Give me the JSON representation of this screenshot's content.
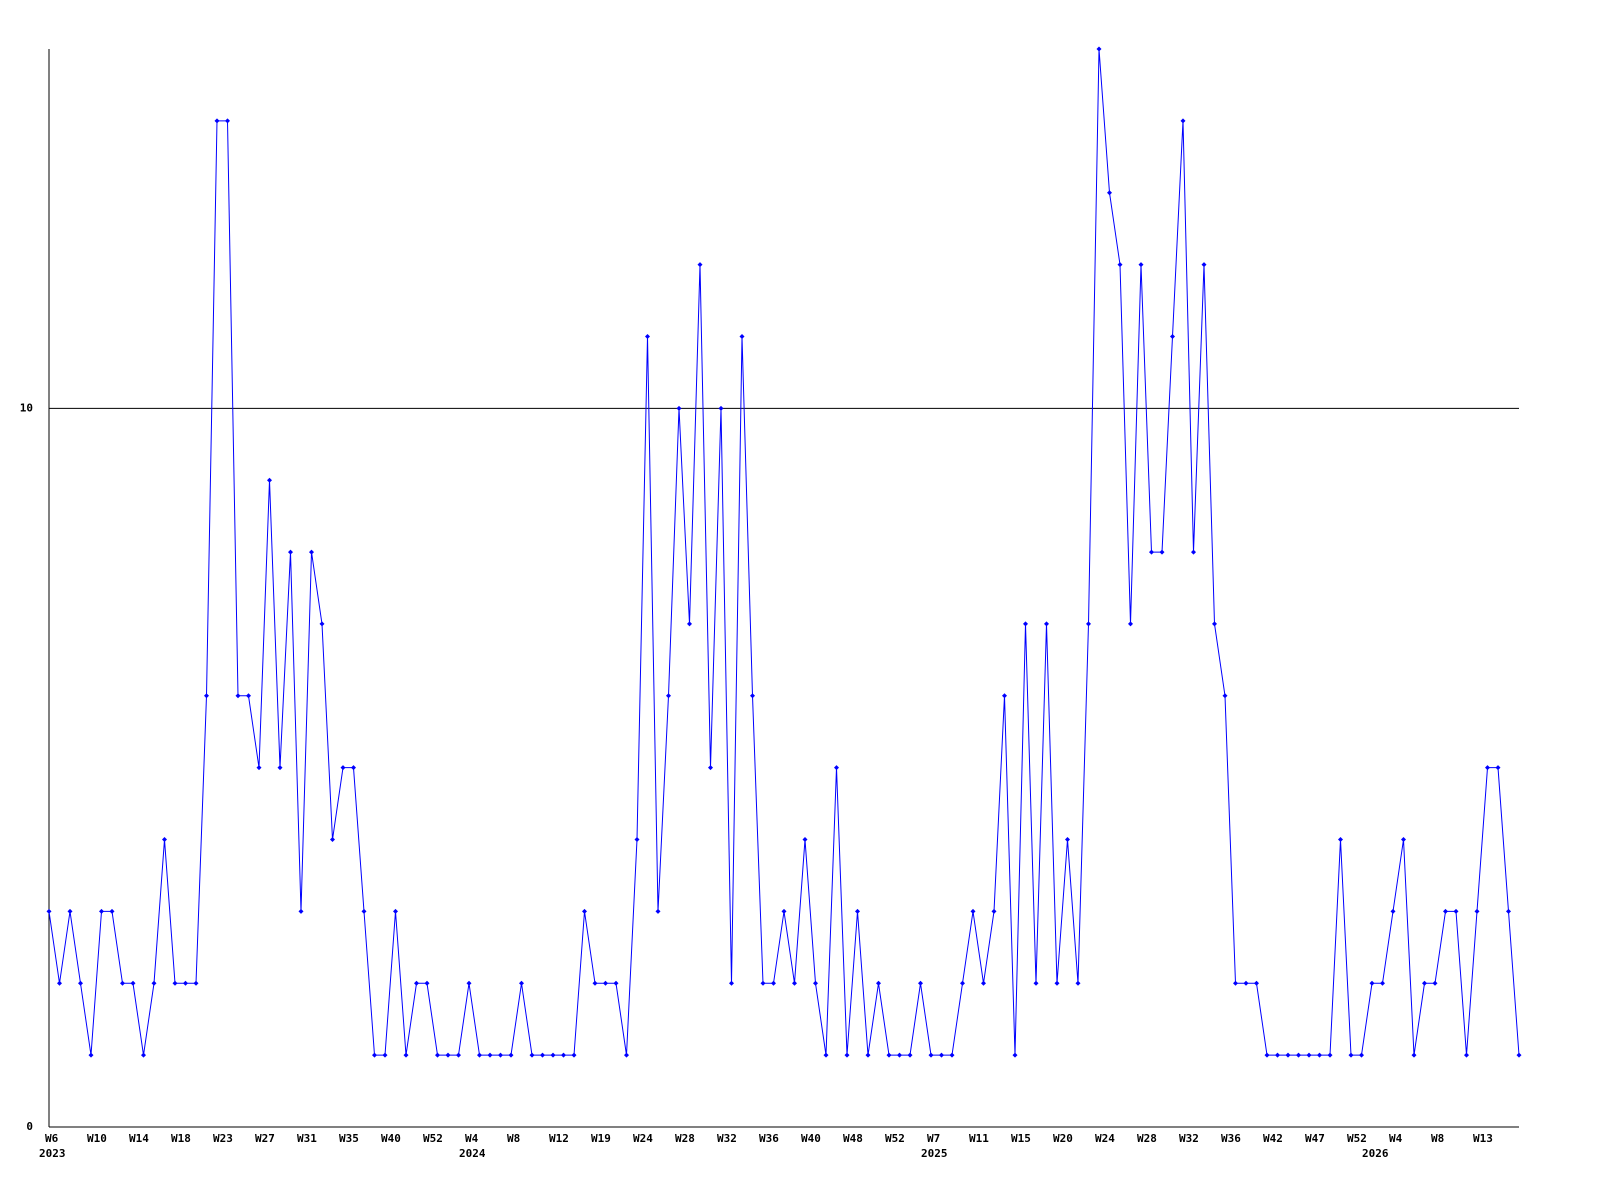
{
  "chart_data": {
    "type": "line",
    "categories": [
      "W6",
      null,
      null,
      null,
      "W10",
      null,
      null,
      null,
      "W14",
      null,
      null,
      null,
      "W18",
      null,
      null,
      null,
      "W23",
      null,
      null,
      null,
      "W27",
      null,
      null,
      null,
      "W31",
      null,
      null,
      null,
      "W35",
      null,
      null,
      null,
      "W40",
      null,
      null,
      null,
      "W52",
      null,
      null,
      null,
      "W4",
      null,
      null,
      null,
      "W8",
      null,
      null,
      null,
      "W12",
      null,
      null,
      null,
      "W19",
      null,
      null,
      null,
      "W24",
      null,
      null,
      null,
      "W28",
      null,
      null,
      null,
      "W32",
      null,
      null,
      null,
      "W36",
      null,
      null,
      null,
      "W40",
      null,
      null,
      null,
      "W48",
      null,
      null,
      null,
      "W52",
      null,
      null,
      null,
      "W7",
      null,
      null,
      null,
      "W11",
      null,
      null,
      null,
      "W15",
      null,
      null,
      null,
      "W20",
      null,
      null,
      null,
      "W24",
      null,
      null,
      null,
      "W28",
      null,
      null,
      null,
      "W32",
      null,
      null,
      null,
      "W36",
      null,
      null,
      null,
      "W42",
      null,
      null,
      null,
      "W47",
      null,
      null,
      null,
      "W52",
      null,
      null,
      null,
      "W4",
      null,
      null,
      null,
      "W8",
      null,
      null,
      null,
      "W13",
      null,
      null,
      null,
      null
    ],
    "year_labels": [
      "2023",
      null,
      null,
      null,
      null,
      null,
      null,
      null,
      null,
      null,
      null,
      null,
      null,
      null,
      null,
      null,
      null,
      null,
      null,
      null,
      null,
      null,
      null,
      null,
      null,
      null,
      null,
      null,
      null,
      null,
      null,
      null,
      null,
      null,
      null,
      null,
      null,
      null,
      null,
      null,
      "2024",
      null,
      null,
      null,
      null,
      null,
      null,
      null,
      null,
      null,
      null,
      null,
      null,
      null,
      null,
      null,
      null,
      null,
      null,
      null,
      null,
      null,
      null,
      null,
      null,
      null,
      null,
      null,
      null,
      null,
      null,
      null,
      null,
      null,
      null,
      null,
      null,
      null,
      null,
      null,
      null,
      null,
      null,
      null,
      "2025",
      null,
      null,
      null,
      null,
      null,
      null,
      null,
      null,
      null,
      null,
      null,
      null,
      null,
      null,
      null,
      null,
      null,
      null,
      null,
      null,
      null,
      null,
      null,
      null,
      null,
      null,
      null,
      null,
      null,
      null,
      null,
      null,
      null,
      null,
      null,
      null,
      null,
      null,
      null,
      null,
      null,
      "2026",
      null,
      null,
      null,
      null,
      null,
      null,
      null,
      null,
      null,
      null,
      null,
      null,
      null,
      null
    ],
    "series": [
      {
        "color": "#0000ff",
        "values": [
          3,
          2,
          3,
          2,
          1,
          3,
          3,
          2,
          2,
          1,
          2,
          4,
          2,
          2,
          2,
          6,
          14,
          14,
          6,
          6,
          5,
          9,
          5,
          8,
          3,
          8,
          7,
          4,
          5,
          5,
          3,
          1,
          1,
          3,
          1,
          2,
          2,
          1,
          1,
          1,
          2,
          1,
          1,
          1,
          1,
          2,
          1,
          1,
          1,
          1,
          1,
          3,
          2,
          2,
          2,
          1,
          4,
          11,
          3,
          6,
          10,
          7,
          12,
          5,
          10,
          2,
          11,
          6,
          2,
          2,
          3,
          2,
          4,
          2,
          1,
          5,
          1,
          3,
          1,
          2,
          1,
          1,
          1,
          2,
          1,
          1,
          1,
          2,
          3,
          2,
          3,
          6,
          1,
          7,
          2,
          7,
          2,
          4,
          2,
          7,
          15,
          13,
          12,
          7,
          12,
          8,
          8,
          11,
          14,
          8,
          12,
          7,
          6,
          2,
          2,
          2,
          1,
          1,
          1,
          1,
          1,
          1,
          1,
          4,
          1,
          1,
          2,
          2,
          3,
          4,
          1,
          2,
          2,
          3,
          3,
          1,
          3,
          5,
          5,
          3,
          1
        ]
      }
    ],
    "ylim": [
      0,
      15
    ],
    "yticks": [
      0,
      10
    ],
    "grid": true
  }
}
